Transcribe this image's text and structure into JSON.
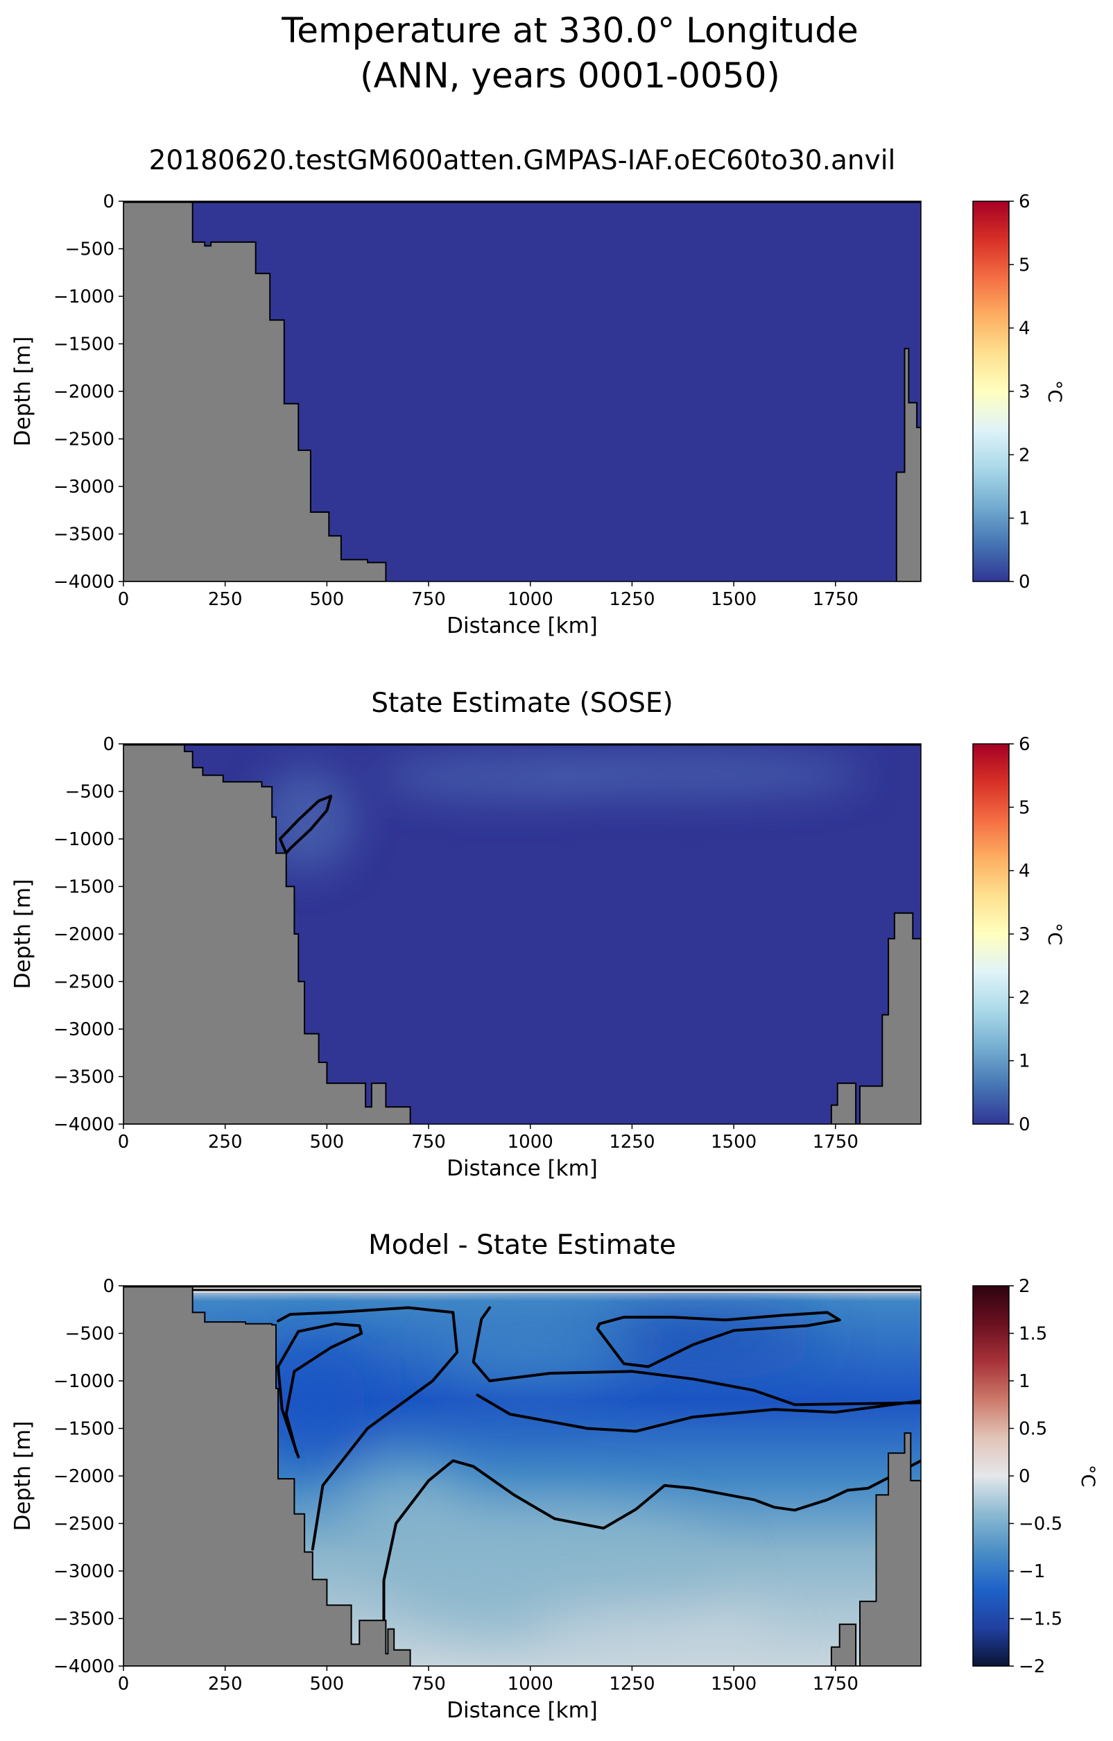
{
  "figure": {
    "title_line1": "Temperature at 330.0° Longitude",
    "title_line2": "(ANN, years 0001-0050)"
  },
  "chart_data": [
    {
      "type": "heatmap",
      "title": "20180620.testGM600atten.GMPAS-IAF.oEC60to30.anvil",
      "xlabel": "Distance [km]",
      "ylabel": "Depth [m]",
      "xlim": [
        0,
        1960
      ],
      "ylim": [
        -4000,
        0
      ],
      "xticks": [
        0,
        250,
        500,
        750,
        1000,
        1250,
        1500,
        1750
      ],
      "yticks": [
        0,
        -500,
        -1000,
        -1500,
        -2000,
        -2500,
        -3000,
        -3500,
        -4000
      ],
      "colormap": "RdYlBu_r",
      "colorbar": {
        "label": "°C",
        "min": 0,
        "max": 6,
        "ticks": [
          0,
          1,
          2,
          3,
          4,
          5,
          6
        ]
      },
      "field": "uniform ~ -1.5 °C (below colorbar minimum) throughout the water column",
      "field_colors": {
        "base": "#313695"
      },
      "bathymetry": {
        "color": "#808080",
        "left_shelf": [
          [
            0,
            0
          ],
          [
            170,
            0
          ],
          [
            170,
            -430
          ],
          [
            200,
            -430
          ],
          [
            200,
            -470
          ],
          [
            215,
            -470
          ],
          [
            215,
            -430
          ],
          [
            325,
            -430
          ],
          [
            325,
            -760
          ],
          [
            360,
            -760
          ],
          [
            360,
            -1250
          ],
          [
            395,
            -1250
          ],
          [
            395,
            -2130
          ],
          [
            430,
            -2130
          ],
          [
            430,
            -2620
          ],
          [
            460,
            -2620
          ],
          [
            460,
            -3270
          ],
          [
            505,
            -3270
          ],
          [
            505,
            -3520
          ],
          [
            535,
            -3520
          ],
          [
            535,
            -3770
          ],
          [
            600,
            -3770
          ],
          [
            600,
            -3800
          ],
          [
            645,
            -3800
          ],
          [
            645,
            -4000
          ],
          [
            0,
            -4000
          ]
        ],
        "right_slope": [
          [
            1960,
            -4000
          ],
          [
            1900,
            -4000
          ],
          [
            1900,
            -2850
          ],
          [
            1920,
            -2850
          ],
          [
            1920,
            -1550
          ],
          [
            1930,
            -1550
          ],
          [
            1930,
            -2120
          ],
          [
            1950,
            -2120
          ],
          [
            1950,
            -2380
          ],
          [
            1960,
            -2380
          ]
        ]
      }
    },
    {
      "type": "heatmap",
      "title": "State Estimate (SOSE)",
      "xlabel": "Distance [km]",
      "ylabel": "Depth [m]",
      "xlim": [
        0,
        1960
      ],
      "ylim": [
        -4000,
        0
      ],
      "xticks": [
        0,
        250,
        500,
        750,
        1000,
        1250,
        1500,
        1750
      ],
      "yticks": [
        0,
        -500,
        -1000,
        -1500,
        -2000,
        -2500,
        -3000,
        -3500,
        -4000
      ],
      "colormap": "RdYlBu_r",
      "colorbar": {
        "label": "°C",
        "min": 0,
        "max": 6,
        "ticks": [
          0,
          1,
          2,
          3,
          4,
          5,
          6
        ]
      },
      "field": "mostly below 0 °C; slightly warmer patches (~0.3 °C) near -300 m",
      "field_colors": {
        "base": "#313695",
        "warm_patch": "#4a66b0"
      },
      "warm_patches": [
        {
          "x": 450,
          "depth": -800,
          "rx": 120,
          "ry": 550
        },
        {
          "x": 950,
          "depth": -350,
          "rx": 320,
          "ry": 230
        },
        {
          "x": 1400,
          "depth": -320,
          "rx": 420,
          "ry": 230
        }
      ],
      "contours": [
        {
          "level": 0.0,
          "points": [
            [
              400,
              -1150
            ],
            [
              385,
              -1000
            ],
            [
              430,
              -800
            ],
            [
              480,
              -600
            ],
            [
              510,
              -550
            ],
            [
              500,
              -700
            ],
            [
              460,
              -900
            ],
            [
              410,
              -1100
            ],
            [
              400,
              -1150
            ]
          ]
        }
      ],
      "bathymetry": {
        "color": "#808080",
        "left_shelf": [
          [
            0,
            0
          ],
          [
            150,
            0
          ],
          [
            150,
            -80
          ],
          [
            170,
            -80
          ],
          [
            170,
            -250
          ],
          [
            195,
            -250
          ],
          [
            195,
            -330
          ],
          [
            245,
            -330
          ],
          [
            245,
            -400
          ],
          [
            340,
            -400
          ],
          [
            340,
            -450
          ],
          [
            365,
            -450
          ],
          [
            365,
            -770
          ],
          [
            375,
            -770
          ],
          [
            375,
            -1150
          ],
          [
            400,
            -1150
          ],
          [
            400,
            -1500
          ],
          [
            420,
            -1500
          ],
          [
            420,
            -2000
          ],
          [
            430,
            -2000
          ],
          [
            430,
            -2500
          ],
          [
            445,
            -2500
          ],
          [
            445,
            -3050
          ],
          [
            480,
            -3050
          ],
          [
            480,
            -3350
          ],
          [
            500,
            -3350
          ],
          [
            500,
            -3570
          ],
          [
            595,
            -3570
          ],
          [
            595,
            -3820
          ],
          [
            610,
            -3820
          ],
          [
            610,
            -3570
          ],
          [
            645,
            -3570
          ],
          [
            645,
            -3820
          ],
          [
            705,
            -3820
          ],
          [
            705,
            -4000
          ],
          [
            0,
            -4000
          ]
        ],
        "right_slope": [
          [
            1960,
            -4000
          ],
          [
            1740,
            -4000
          ],
          [
            1740,
            -3800
          ],
          [
            1755,
            -3800
          ],
          [
            1755,
            -3570
          ],
          [
            1800,
            -3570
          ],
          [
            1800,
            -4000
          ],
          [
            1810,
            -4000
          ],
          [
            1810,
            -3600
          ],
          [
            1865,
            -3600
          ],
          [
            1865,
            -2850
          ],
          [
            1880,
            -2850
          ],
          [
            1880,
            -2050
          ],
          [
            1895,
            -2050
          ],
          [
            1895,
            -1780
          ],
          [
            1940,
            -1780
          ],
          [
            1940,
            -2050
          ],
          [
            1960,
            -2050
          ]
        ]
      }
    },
    {
      "type": "heatmap",
      "title": "Model - State Estimate",
      "xlabel": "Distance [km]",
      "ylabel": "Depth [m]",
      "xlim": [
        0,
        1960
      ],
      "ylim": [
        -4000,
        0
      ],
      "xticks": [
        0,
        250,
        500,
        750,
        1000,
        1250,
        1500,
        1750
      ],
      "yticks": [
        0,
        -500,
        -1000,
        -1500,
        -2000,
        -2500,
        -3000,
        -3500,
        -4000
      ],
      "colormap": "RdBu_r",
      "colorbar": {
        "label": "°C",
        "min": -2.0,
        "max": 2.0,
        "ticks": [
          -2.0,
          -1.5,
          -1.0,
          -0.5,
          0.0,
          0.5,
          1.0,
          1.5,
          2.0
        ]
      },
      "field": "negative everywhere: strongest (~-1.6) in upper/mid water, ~-0.3 near bottom",
      "field_colors": {
        "surface": "#e8e2e1",
        "strong": "#1c55c4",
        "mid": "#3f86c6",
        "weak": "#8ab5cc",
        "bottom": "#c8d6de"
      },
      "contours": [
        {
          "level": -1.5,
          "points": [
            [
              430,
              -1800
            ],
            [
              390,
              -1300
            ],
            [
              380,
              -850
            ],
            [
              430,
              -480
            ],
            [
              520,
              -400
            ],
            [
              580,
              -420
            ],
            [
              585,
              -500
            ],
            [
              510,
              -650
            ],
            [
              420,
              -900
            ],
            [
              400,
              -1350
            ],
            [
              425,
              -1750
            ]
          ]
        },
        {
          "level": -1.5,
          "points": [
            [
              1170,
              -400
            ],
            [
              1230,
              -330
            ],
            [
              1350,
              -330
            ],
            [
              1480,
              -360
            ],
            [
              1620,
              -310
            ],
            [
              1730,
              -280
            ],
            [
              1760,
              -360
            ],
            [
              1680,
              -420
            ],
            [
              1500,
              -470
            ],
            [
              1400,
              -620
            ],
            [
              1290,
              -850
            ],
            [
              1230,
              -820
            ],
            [
              1200,
              -650
            ],
            [
              1165,
              -450
            ],
            [
              1170,
              -400
            ]
          ]
        },
        {
          "level": -1.0,
          "points": [
            [
              465,
              -2770
            ],
            [
              490,
              -2100
            ],
            [
              600,
              -1500
            ],
            [
              760,
              -1000
            ],
            [
              820,
              -700
            ],
            [
              810,
              -280
            ],
            [
              700,
              -230
            ],
            [
              520,
              -280
            ],
            [
              410,
              -300
            ],
            [
              380,
              -370
            ]
          ]
        },
        {
          "level": -1.0,
          "points": [
            [
              1960,
              -1230
            ],
            [
              1650,
              -1250
            ],
            [
              1550,
              -1100
            ],
            [
              1400,
              -980
            ],
            [
              1250,
              -900
            ],
            [
              1050,
              -920
            ],
            [
              900,
              -1000
            ],
            [
              860,
              -800
            ],
            [
              880,
              -350
            ],
            [
              900,
              -230
            ]
          ]
        },
        {
          "level": -0.5,
          "points": [
            [
              640,
              -3850
            ],
            [
              640,
              -3100
            ],
            [
              670,
              -2500
            ],
            [
              750,
              -2050
            ],
            [
              810,
              -1840
            ],
            [
              860,
              -1900
            ],
            [
              960,
              -2200
            ],
            [
              1060,
              -2450
            ],
            [
              1180,
              -2550
            ],
            [
              1260,
              -2350
            ],
            [
              1330,
              -2100
            ],
            [
              1400,
              -2130
            ],
            [
              1550,
              -2250
            ],
            [
              1600,
              -2330
            ],
            [
              1650,
              -2360
            ],
            [
              1730,
              -2250
            ],
            [
              1780,
              -2150
            ],
            [
              1830,
              -2130
            ],
            [
              1960,
              -1840
            ]
          ]
        },
        {
          "level": -1.0,
          "points": [
            [
              1960,
              -1210
            ],
            [
              1750,
              -1330
            ],
            [
              1600,
              -1300
            ],
            [
              1400,
              -1380
            ],
            [
              1260,
              -1530
            ],
            [
              1140,
              -1500
            ],
            [
              950,
              -1350
            ],
            [
              870,
              -1150
            ]
          ]
        }
      ],
      "bathymetry": {
        "color": "#808080",
        "left_shelf": [
          [
            0,
            0
          ],
          [
            170,
            0
          ],
          [
            170,
            -280
          ],
          [
            200,
            -280
          ],
          [
            200,
            -380
          ],
          [
            215,
            -380
          ],
          [
            215,
            -380
          ],
          [
            300,
            -380
          ],
          [
            300,
            -400
          ],
          [
            365,
            -400
          ],
          [
            365,
            -410
          ],
          [
            375,
            -410
          ],
          [
            375,
            -1080
          ],
          [
            380,
            -1080
          ],
          [
            380,
            -2030
          ],
          [
            420,
            -2030
          ],
          [
            420,
            -2400
          ],
          [
            445,
            -2400
          ],
          [
            445,
            -2800
          ],
          [
            465,
            -2800
          ],
          [
            465,
            -3090
          ],
          [
            500,
            -3090
          ],
          [
            500,
            -3360
          ],
          [
            560,
            -3360
          ],
          [
            560,
            -3770
          ],
          [
            580,
            -3770
          ],
          [
            580,
            -3520
          ],
          [
            645,
            -3520
          ],
          [
            645,
            -3870
          ],
          [
            650,
            -3870
          ],
          [
            650,
            -3610
          ],
          [
            665,
            -3610
          ],
          [
            665,
            -3830
          ],
          [
            705,
            -3830
          ],
          [
            705,
            -4000
          ],
          [
            0,
            -4000
          ]
        ],
        "right_slope": [
          [
            1960,
            -4000
          ],
          [
            1740,
            -4000
          ],
          [
            1740,
            -3800
          ],
          [
            1760,
            -3800
          ],
          [
            1760,
            -3560
          ],
          [
            1800,
            -3560
          ],
          [
            1800,
            -4000
          ],
          [
            1810,
            -4000
          ],
          [
            1810,
            -3320
          ],
          [
            1850,
            -3320
          ],
          [
            1850,
            -2200
          ],
          [
            1880,
            -2200
          ],
          [
            1880,
            -1760
          ],
          [
            1920,
            -1760
          ],
          [
            1920,
            -1550
          ],
          [
            1935,
            -1550
          ],
          [
            1935,
            -2050
          ],
          [
            1960,
            -2050
          ]
        ]
      }
    }
  ]
}
